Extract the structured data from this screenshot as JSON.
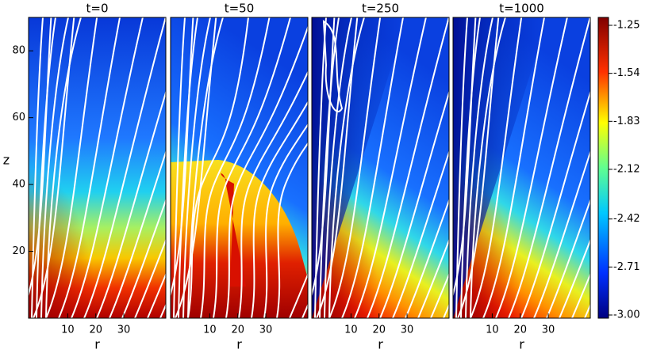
{
  "chart_data": [
    {
      "type": "image",
      "title": "t=0",
      "xlabel": "r",
      "ylabel": "z",
      "xlim": [
        -4,
        45
      ],
      "ylim": [
        0,
        90
      ],
      "xticks": [
        10,
        20,
        30
      ],
      "yticks": [
        20,
        40,
        60,
        80
      ]
    },
    {
      "type": "image",
      "title": "t=50",
      "xlabel": "r",
      "xlim": [
        -4,
        45
      ],
      "ylim": [
        0,
        90
      ],
      "xticks": [
        10,
        20,
        30
      ]
    },
    {
      "type": "image",
      "title": "t=250",
      "xlabel": "r",
      "xlim": [
        -4,
        45
      ],
      "ylim": [
        0,
        90
      ],
      "xticks": [
        10,
        20,
        30
      ]
    },
    {
      "type": "image",
      "title": "t=1000",
      "xlabel": "r",
      "xlim": [
        -4,
        45
      ],
      "ylim": [
        0,
        90
      ],
      "xticks": [
        10,
        20,
        30
      ]
    },
    {
      "type": "colorbar",
      "ylim": [
        -3,
        -1.25
      ],
      "yticks": [
        -1.25,
        -1.54,
        -1.83,
        -2.12,
        -2.42,
        -2.71,
        {
          "value": -3,
          "label": "-3.00"
        }
      ]
    }
  ]
}
